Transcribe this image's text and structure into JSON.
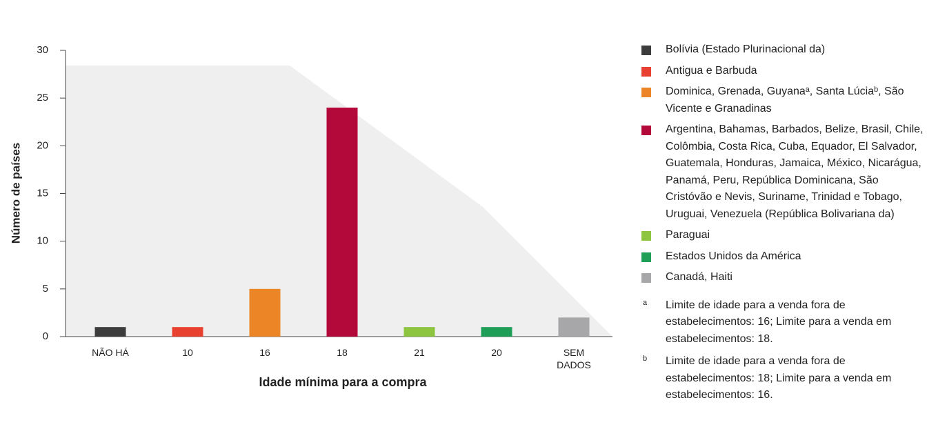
{
  "chart_data": {
    "type": "bar",
    "categories": [
      "NÃO HÁ",
      "10",
      "16",
      "18",
      "21",
      "20",
      "SEM DADOS"
    ],
    "values": [
      1,
      1,
      5,
      24,
      1,
      1,
      2
    ],
    "colors": [
      "#3c3c3c",
      "#e8412f",
      "#ec8526",
      "#b3093a",
      "#8dc540",
      "#1f9e57",
      "#a7a7a9"
    ],
    "ylim": [
      0,
      30
    ],
    "yticks": [
      0,
      5,
      10,
      15,
      20,
      25,
      30
    ],
    "ylabel": "Número de países",
    "xlabel": "Idade mínima para a compra",
    "legend": [
      "Bolívia (Estado Plurinacional da)",
      "Antigua e Barbuda",
      "Dominica, Grenada, Guyanaᵃ,  Santa Lúciaᵇ, São Vicente e Granadinas",
      "Argentina, Bahamas, Barbados, Belize, Brasil, Chile, Colômbia, Costa Rica, Cuba, Equador, El Salvador, Guatemala, Honduras, Jamaica, México, Nicarágua, Panamá, Peru, República Dominicana, São Cristóvão e Nevis, Suriname, Trinidad e Tobago, Uruguai, Venezuela (República Bolivariana da)",
      "Paraguai",
      "Estados Unidos da América",
      "Canadá, Haiti"
    ],
    "footnotes": [
      {
        "marker": "a",
        "text": "Limite de idade para a venda fora de estabelecimentos: 16; Limite para a venda em estabelecimentos: 18."
      },
      {
        "marker": "b",
        "text": "Limite de idade para a venda fora de estabelecimentos: 18; Limite para a venda em  estabelecimentos: 16."
      }
    ]
  }
}
